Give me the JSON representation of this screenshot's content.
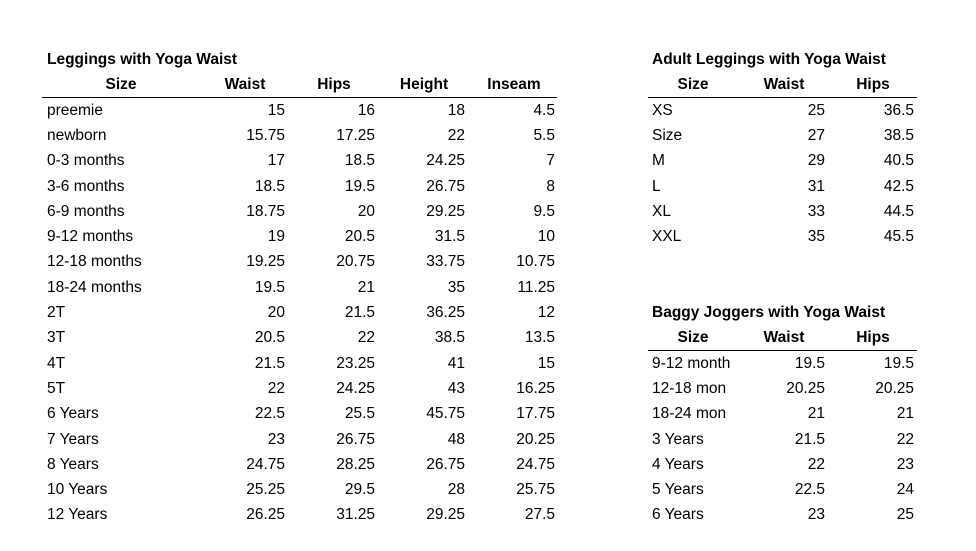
{
  "tables": [
    {
      "title": "Leggings with Yoga Waist",
      "columns": [
        "Size",
        "Waist",
        "Hips",
        "Height",
        "Inseam"
      ],
      "rows": [
        [
          "preemie",
          15,
          16,
          18,
          4.5
        ],
        [
          "newborn",
          15.75,
          17.25,
          22,
          5.5
        ],
        [
          "0-3 months",
          17,
          18.5,
          24.25,
          7
        ],
        [
          "3-6 months",
          18.5,
          19.5,
          26.75,
          8
        ],
        [
          "6-9 months",
          18.75,
          20,
          29.25,
          9.5
        ],
        [
          "9-12 months",
          19,
          20.5,
          31.5,
          10
        ],
        [
          "12-18 months",
          19.25,
          20.75,
          33.75,
          10.75
        ],
        [
          "18-24 months",
          19.5,
          21,
          35,
          11.25
        ],
        [
          "2T",
          20,
          21.5,
          36.25,
          12
        ],
        [
          "3T",
          20.5,
          22,
          38.5,
          13.5
        ],
        [
          "4T",
          21.5,
          23.25,
          41,
          15
        ],
        [
          "5T",
          22,
          24.25,
          43,
          16.25
        ],
        [
          "6 Years",
          22.5,
          25.5,
          45.75,
          17.75
        ],
        [
          "7 Years",
          23,
          26.75,
          48,
          20.25
        ],
        [
          "8 Years",
          24.75,
          28.25,
          26.75,
          24.75
        ],
        [
          "10 Years",
          25.25,
          29.5,
          28,
          25.75
        ],
        [
          "12 Years",
          26.25,
          31.25,
          29.25,
          27.5
        ]
      ]
    },
    {
      "title": "Adult Leggings with Yoga Waist",
      "columns": [
        "Size",
        "Waist",
        "Hips"
      ],
      "rows": [
        [
          "XS",
          25,
          36.5
        ],
        [
          "Size",
          27,
          38.5
        ],
        [
          "M",
          29,
          40.5
        ],
        [
          "L",
          31,
          42.5
        ],
        [
          "XL",
          33,
          44.5
        ],
        [
          "XXL",
          35,
          45.5
        ]
      ]
    },
    {
      "title": "Baggy Joggers with Yoga Waist",
      "columns": [
        "Size",
        "Waist",
        "Hips"
      ],
      "rows": [
        [
          "9-12 month",
          19.5,
          19.5
        ],
        [
          "12-18 mon",
          20.25,
          20.25
        ],
        [
          "18-24 mon",
          21,
          21
        ],
        [
          "3 Years",
          21.5,
          22
        ],
        [
          "4 Years",
          22,
          23
        ],
        [
          "5 Years",
          22.5,
          24
        ],
        [
          "6 Years",
          23,
          25
        ]
      ]
    }
  ]
}
